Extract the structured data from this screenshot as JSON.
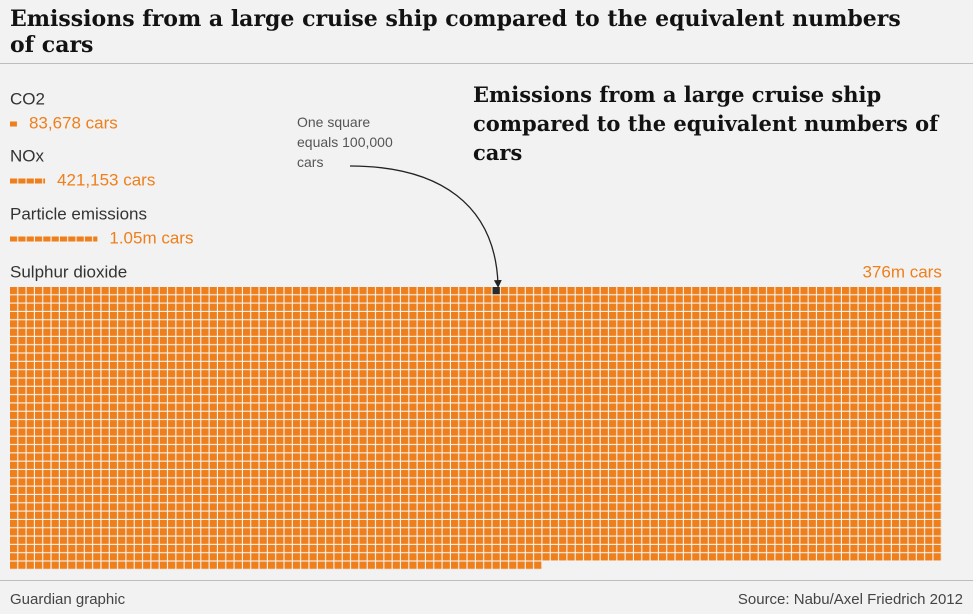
{
  "header": {
    "title": "Emissions from a large cruise ship compared to the equivalent numbers of cars"
  },
  "chart_data": {
    "type": "waffle",
    "title": "Emissions from a large cruise ship compared to the equivalent numbers of cars",
    "annotation": "One square equals 100,000 cars",
    "square_value": 100000,
    "color": "#ee7f1b",
    "categories": [
      "CO2",
      "NOx",
      "Particle emissions",
      "Sulphur dioxide"
    ],
    "values": [
      83678,
      421153,
      1050000,
      376000000
    ],
    "value_labels": [
      "83,678 cars",
      "421,153 cars",
      "1.05m cars",
      "376m cars"
    ]
  },
  "footer": {
    "credit": "Guardian graphic",
    "source": "Source: Nabu/Axel Friedrich 2012"
  }
}
